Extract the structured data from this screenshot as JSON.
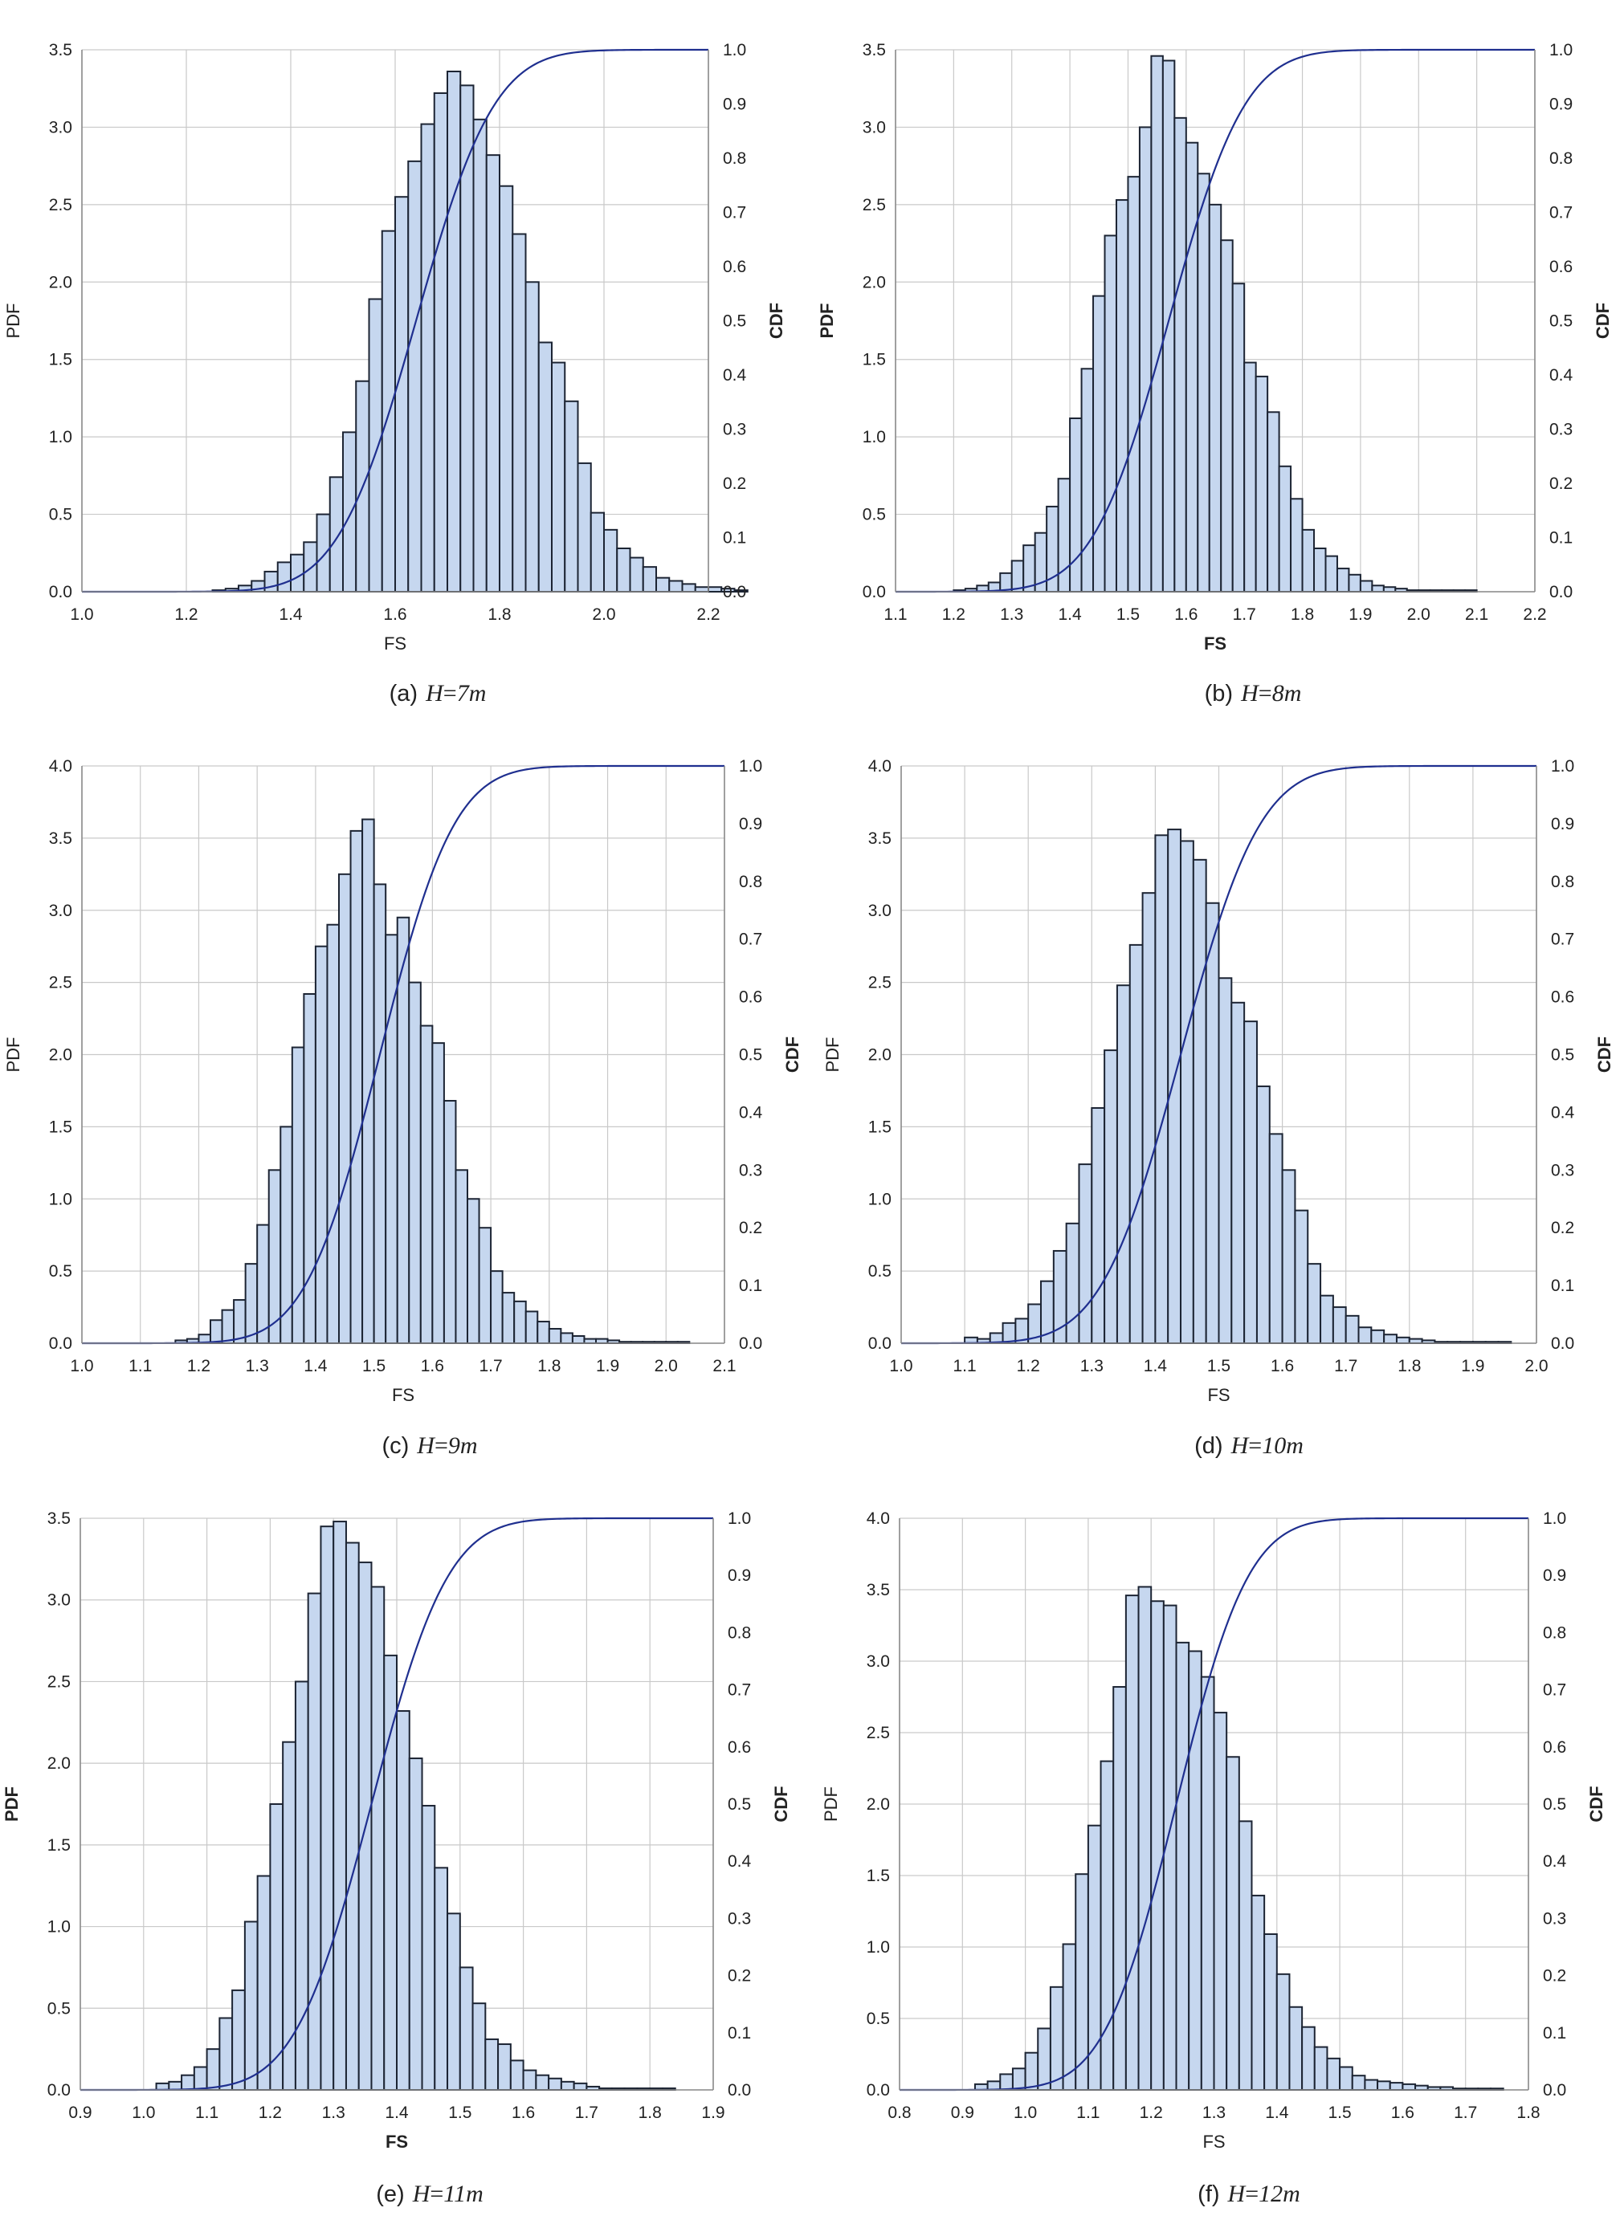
{
  "chart_data": [
    {
      "type": "bar",
      "caption": {
        "label": "(a)",
        "variable": "H",
        "equals": "=",
        "value": "7m"
      },
      "xlabel": "FS",
      "ylabel_left": "PDF",
      "ylabel_right": "CDF",
      "xlim": [
        1.0,
        2.2
      ],
      "ylim": [
        0,
        3.5
      ],
      "y2lim": [
        0,
        1.0
      ],
      "grid": true,
      "xticks": [
        "1.0",
        "1.2",
        "1.4",
        "1.6",
        "1.8",
        "2.0",
        "2.2"
      ],
      "yticks": [
        "0.0",
        "0.5",
        "1.0",
        "1.5",
        "2.0",
        "2.5",
        "3.0",
        "3.5"
      ],
      "y2ticks": [
        "0.0",
        "0.1",
        "0.2",
        "0.3",
        "0.4",
        "0.5",
        "0.6",
        "0.7",
        "0.8",
        "0.9",
        "1.0"
      ],
      "bin_start": 1.25,
      "bin_width": 0.025,
      "values": [
        0.01,
        0.02,
        0.04,
        0.07,
        0.13,
        0.19,
        0.24,
        0.32,
        0.5,
        0.74,
        1.03,
        1.36,
        1.89,
        2.33,
        2.55,
        2.78,
        3.02,
        3.22,
        3.36,
        3.27,
        3.05,
        2.82,
        2.62,
        2.31,
        2.0,
        1.61,
        1.48,
        1.23,
        0.83,
        0.51,
        0.4,
        0.28,
        0.22,
        0.16,
        0.09,
        0.07,
        0.05,
        0.03,
        0.03,
        0.02,
        0.01
      ],
      "cdf": {
        "mean": 1.64,
        "std": 0.118,
        "x_end": 2.2
      },
      "labels_bold": false
    },
    {
      "type": "bar",
      "caption": {
        "label": "(b)",
        "variable": "H",
        "equals": "=",
        "value": "8m"
      },
      "xlabel": "FS",
      "ylabel_left": "PDF",
      "ylabel_right": "CDF",
      "xlim": [
        1.1,
        2.2
      ],
      "ylim": [
        0,
        3.5
      ],
      "y2lim": [
        0,
        1.0
      ],
      "grid": true,
      "xticks": [
        "1.1",
        "1.2",
        "1.3",
        "1.4",
        "1.5",
        "1.6",
        "1.7",
        "1.8",
        "1.9",
        "2.0",
        "2.1",
        "2.2"
      ],
      "yticks": [
        "0.0",
        "0.5",
        "1.0",
        "1.5",
        "2.0",
        "2.5",
        "3.0",
        "3.5"
      ],
      "y2ticks": [
        "0.0",
        "0.1",
        "0.2",
        "0.3",
        "0.4",
        "0.5",
        "0.6",
        "0.7",
        "0.8",
        "0.9",
        "1.0"
      ],
      "bin_start": 1.2,
      "bin_width": 0.02,
      "values": [
        0.01,
        0.02,
        0.04,
        0.06,
        0.12,
        0.2,
        0.3,
        0.38,
        0.55,
        0.73,
        1.12,
        1.44,
        1.91,
        2.3,
        2.53,
        2.68,
        3.0,
        3.46,
        3.43,
        3.06,
        2.9,
        2.7,
        2.5,
        2.27,
        1.99,
        1.48,
        1.39,
        1.16,
        0.81,
        0.6,
        0.4,
        0.28,
        0.23,
        0.15,
        0.11,
        0.07,
        0.04,
        0.03,
        0.02,
        0.01,
        0.01,
        0.01,
        0.01,
        0.01,
        0.01
      ],
      "cdf": {
        "mean": 1.57,
        "std": 0.103,
        "x_end": 2.2
      },
      "labels_bold": true
    },
    {
      "type": "bar",
      "caption": {
        "label": "(c)",
        "variable": "H",
        "equals": "=",
        "value": "9m"
      },
      "xlabel": "FS",
      "ylabel_left": "PDF",
      "ylabel_right": "CDF",
      "xlim": [
        1.0,
        2.1
      ],
      "ylim": [
        0,
        4.0
      ],
      "y2lim": [
        0,
        1.0
      ],
      "grid": true,
      "xticks": [
        "1.0",
        "1.1",
        "1.2",
        "1.3",
        "1.4",
        "1.5",
        "1.6",
        "1.7",
        "1.8",
        "1.9",
        "2.0",
        "2.1"
      ],
      "yticks": [
        "0.0",
        "0.5",
        "1.0",
        "1.5",
        "2.0",
        "2.5",
        "3.0",
        "3.5",
        "4.0"
      ],
      "y2ticks": [
        "0.0",
        "0.1",
        "0.2",
        "0.3",
        "0.4",
        "0.5",
        "0.6",
        "0.7",
        "0.8",
        "0.9",
        "1.0"
      ],
      "bin_start": 1.16,
      "bin_width": 0.02,
      "values": [
        0.02,
        0.03,
        0.06,
        0.16,
        0.23,
        0.3,
        0.55,
        0.82,
        1.2,
        1.5,
        2.05,
        2.42,
        2.75,
        2.9,
        3.25,
        3.55,
        3.63,
        3.18,
        2.83,
        2.95,
        2.5,
        2.2,
        2.08,
        1.68,
        1.2,
        1.0,
        0.8,
        0.5,
        0.35,
        0.29,
        0.22,
        0.15,
        0.1,
        0.07,
        0.05,
        0.03,
        0.03,
        0.02,
        0.01,
        0.01,
        0.01,
        0.01,
        0.01,
        0.01
      ],
      "cdf": {
        "mean": 1.51,
        "std": 0.1,
        "x_end": 2.1
      },
      "labels_bold": false
    },
    {
      "type": "bar",
      "caption": {
        "label": "(d)",
        "variable": "H",
        "equals": "=",
        "value": "10m"
      },
      "xlabel": "FS",
      "ylabel_left": "PDF",
      "ylabel_right": "CDF",
      "xlim": [
        1.0,
        2.0
      ],
      "ylim": [
        0,
        4.0
      ],
      "y2lim": [
        0,
        1.0
      ],
      "grid": true,
      "xticks": [
        "1.0",
        "1.1",
        "1.2",
        "1.3",
        "1.4",
        "1.5",
        "1.6",
        "1.7",
        "1.8",
        "1.9",
        "2.0"
      ],
      "yticks": [
        "0.0",
        "0.5",
        "1.0",
        "1.5",
        "2.0",
        "2.5",
        "3.0",
        "3.5",
        "4.0"
      ],
      "y2ticks": [
        "0.0",
        "0.1",
        "0.2",
        "0.3",
        "0.4",
        "0.5",
        "0.6",
        "0.7",
        "0.8",
        "0.9",
        "1.0"
      ],
      "bin_start": 1.1,
      "bin_width": 0.02,
      "values": [
        0.04,
        0.03,
        0.07,
        0.14,
        0.17,
        0.27,
        0.43,
        0.64,
        0.83,
        1.24,
        1.63,
        2.03,
        2.48,
        2.76,
        3.12,
        3.52,
        3.56,
        3.48,
        3.35,
        3.05,
        2.53,
        2.36,
        2.23,
        1.78,
        1.45,
        1.2,
        0.92,
        0.55,
        0.33,
        0.25,
        0.19,
        0.11,
        0.09,
        0.06,
        0.04,
        0.03,
        0.02,
        0.01,
        0.01,
        0.01,
        0.01,
        0.01,
        0.01
      ],
      "cdf": {
        "mean": 1.44,
        "std": 0.098,
        "x_end": 2.0
      },
      "labels_bold": false
    },
    {
      "type": "bar",
      "caption": {
        "label": "(e)",
        "variable": "H",
        "equals": "=",
        "value": "11m"
      },
      "xlabel": "FS",
      "ylabel_left": "PDF",
      "ylabel_right": "CDF",
      "xlim": [
        0.9,
        1.9
      ],
      "ylim": [
        0,
        3.5
      ],
      "y2lim": [
        0,
        1.0
      ],
      "grid": true,
      "xticks": [
        "0.9",
        "1.0",
        "1.1",
        "1.2",
        "1.3",
        "1.4",
        "1.5",
        "1.6",
        "1.7",
        "1.8",
        "1.9"
      ],
      "yticks": [
        "0.0",
        "0.5",
        "1.0",
        "1.5",
        "2.0",
        "2.5",
        "3.0",
        "3.5"
      ],
      "y2ticks": [
        "0.0",
        "0.1",
        "0.2",
        "0.3",
        "0.4",
        "0.5",
        "0.6",
        "0.7",
        "0.8",
        "0.9",
        "1.0"
      ],
      "bin_start": 1.02,
      "bin_width": 0.02,
      "values": [
        0.04,
        0.05,
        0.09,
        0.14,
        0.25,
        0.44,
        0.61,
        1.03,
        1.31,
        1.75,
        2.13,
        2.5,
        3.04,
        3.45,
        3.48,
        3.35,
        3.23,
        3.08,
        2.66,
        2.32,
        2.03,
        1.74,
        1.36,
        1.08,
        0.75,
        0.53,
        0.31,
        0.28,
        0.18,
        0.12,
        0.09,
        0.07,
        0.05,
        0.04,
        0.02,
        0.01,
        0.01,
        0.01,
        0.01,
        0.01,
        0.01
      ],
      "cdf": {
        "mean": 1.36,
        "std": 0.095,
        "x_end": 1.9
      },
      "labels_bold": true
    },
    {
      "type": "bar",
      "caption": {
        "label": "(f)",
        "variable": "H",
        "equals": "=",
        "value": "12m"
      },
      "xlabel": "FS",
      "ylabel_left": "PDF",
      "ylabel_right": "CDF",
      "xlim": [
        0.8,
        1.8
      ],
      "ylim": [
        0,
        4.0
      ],
      "y2lim": [
        0,
        1.0
      ],
      "grid": true,
      "xticks": [
        "0.8",
        "0.9",
        "1.0",
        "1.1",
        "1.2",
        "1.3",
        "1.4",
        "1.5",
        "1.6",
        "1.7",
        "1.8"
      ],
      "yticks": [
        "0.0",
        "0.5",
        "1.0",
        "1.5",
        "2.0",
        "2.5",
        "3.0",
        "3.5",
        "4.0"
      ],
      "y2ticks": [
        "0.0",
        "0.1",
        "0.2",
        "0.3",
        "0.4",
        "0.5",
        "0.6",
        "0.7",
        "0.8",
        "0.9",
        "1.0"
      ],
      "bin_start": 0.92,
      "bin_width": 0.02,
      "values": [
        0.04,
        0.06,
        0.11,
        0.15,
        0.26,
        0.43,
        0.72,
        1.02,
        1.51,
        1.85,
        2.3,
        2.82,
        3.46,
        3.52,
        3.42,
        3.39,
        3.13,
        3.07,
        2.89,
        2.64,
        2.33,
        1.88,
        1.36,
        1.09,
        0.81,
        0.58,
        0.44,
        0.3,
        0.22,
        0.16,
        0.1,
        0.07,
        0.06,
        0.05,
        0.04,
        0.03,
        0.02,
        0.02,
        0.01,
        0.01,
        0.01,
        0.01
      ],
      "cdf": {
        "mean": 1.24,
        "std": 0.09,
        "x_end": 1.8
      },
      "labels_bold": false
    }
  ]
}
